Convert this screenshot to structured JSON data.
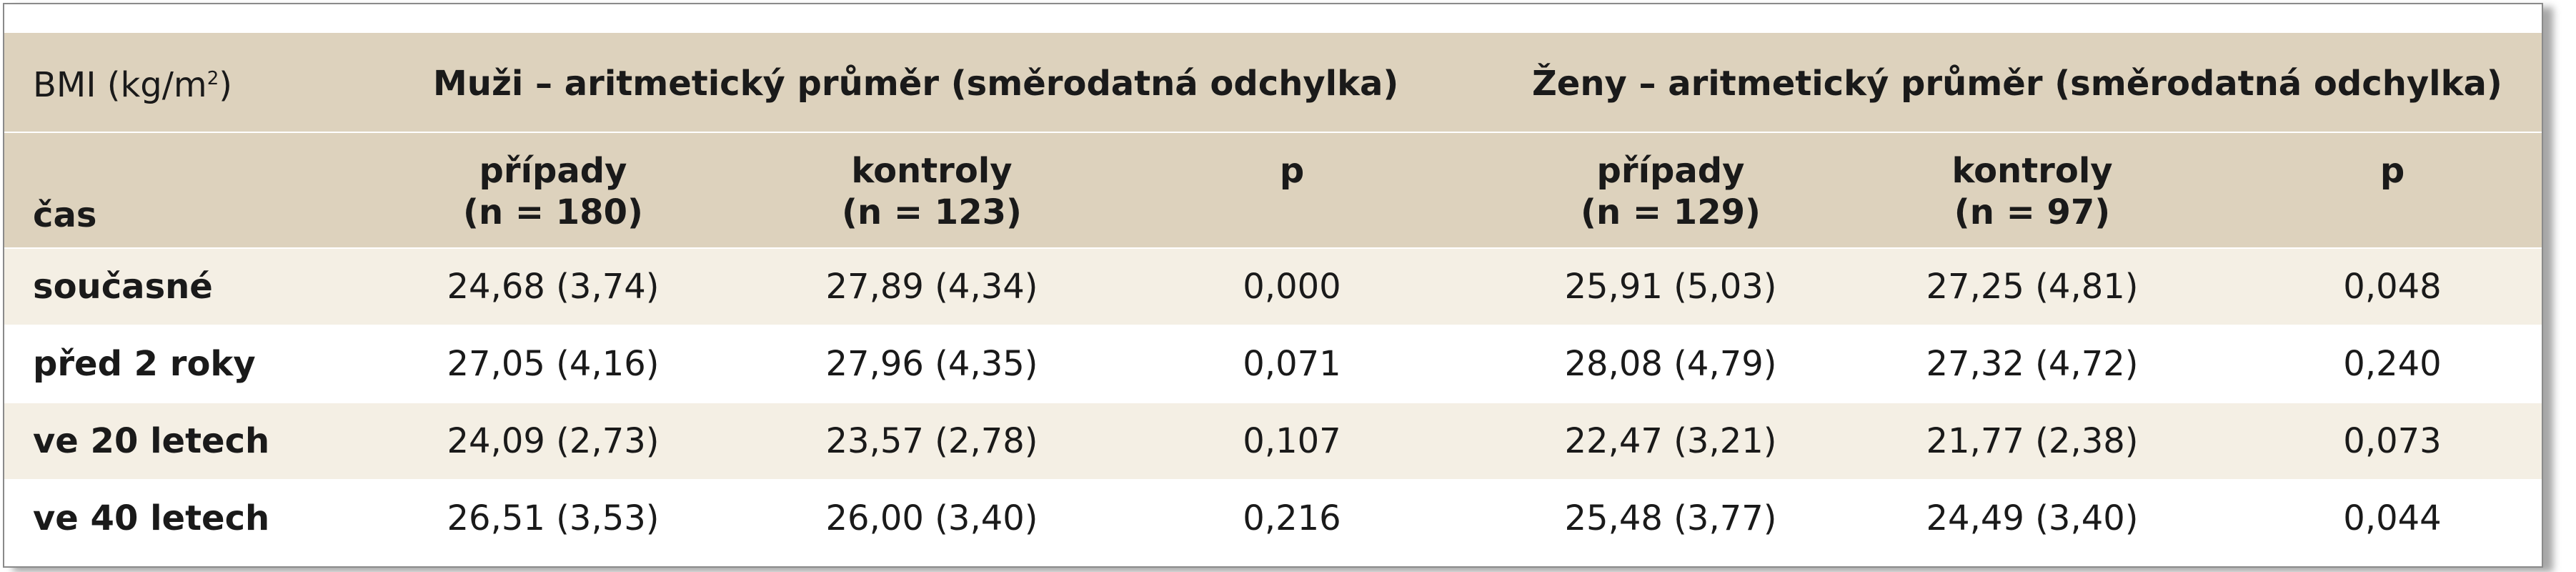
{
  "table": {
    "corner": {
      "before": "BMI (kg/m",
      "sup": "2",
      "after": ")"
    },
    "time_label": "čas",
    "groups": [
      "Muži – aritmetický průměr (směrodatná odchylka)",
      "Ženy – aritmetický průměr (směrodatná odchylka)"
    ],
    "subheaders": [
      [
        "případy",
        "(n = 180)"
      ],
      [
        "kontroly",
        "(n = 123)"
      ],
      [
        "p"
      ],
      [
        "případy",
        "(n = 129)"
      ],
      [
        "kontroly",
        "(n = 97)"
      ],
      [
        "p"
      ]
    ],
    "rows": [
      [
        "současné",
        "24,68 (3,74)",
        "27,89 (4,34)",
        "0,000",
        "25,91 (5,03)",
        "27,25 (4,81)",
        "0,048"
      ],
      [
        "před 2 roky",
        "27,05 (4,16)",
        "27,96 (4,35)",
        "0,071",
        "28,08 (4,79)",
        "27,32 (4,72)",
        "0,240"
      ],
      [
        "ve 20 letech",
        "24,09 (2,73)",
        "23,57 (2,78)",
        "0,107",
        "22,47 (3,21)",
        "21,77 (2,38)",
        "0,073"
      ],
      [
        "ve 40 letech",
        "26,51 (3,53)",
        "26,00 (3,40)",
        "0,216",
        "25,48 (3,77)",
        "24,49 (3,40)",
        "0,044"
      ]
    ]
  }
}
